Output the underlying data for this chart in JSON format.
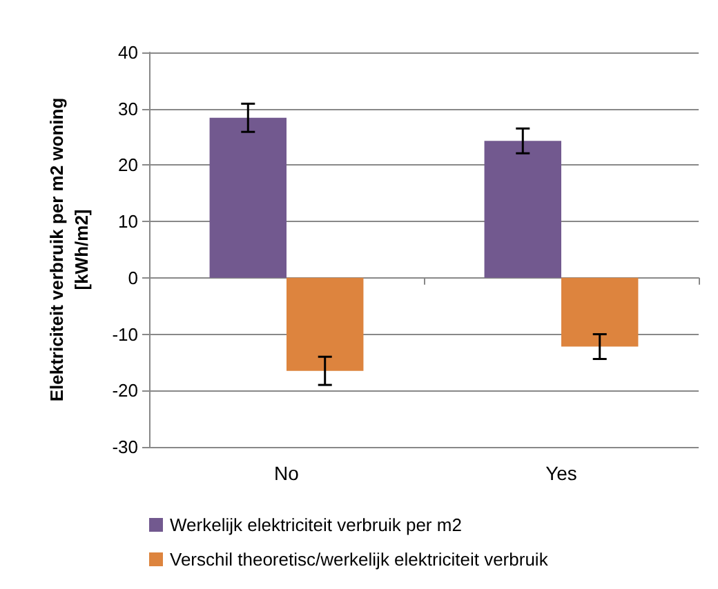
{
  "chart_data": {
    "type": "bar",
    "ylabel": "Elektriciteit verbruik per m2 woning\n[kWh/m2]",
    "categories": [
      "No",
      "Yes"
    ],
    "series": [
      {
        "name": "Werkelijk elektriciteit verbruik per m2",
        "color": "#72598f",
        "values": [
          28.4,
          24.3
        ],
        "errors": [
          2.5,
          2.2
        ]
      },
      {
        "name": "Verschil theoretisc/werkelijk elektriciteit verbruik",
        "color": "#dd843e",
        "values": [
          -16.5,
          -12.2
        ],
        "errors": [
          2.5,
          2.2
        ]
      }
    ],
    "ylim": [
      -30,
      40
    ],
    "yticks": [
      -30,
      -20,
      -10,
      0,
      10,
      20,
      30,
      40
    ],
    "grid": "y",
    "legend": "bottom"
  }
}
